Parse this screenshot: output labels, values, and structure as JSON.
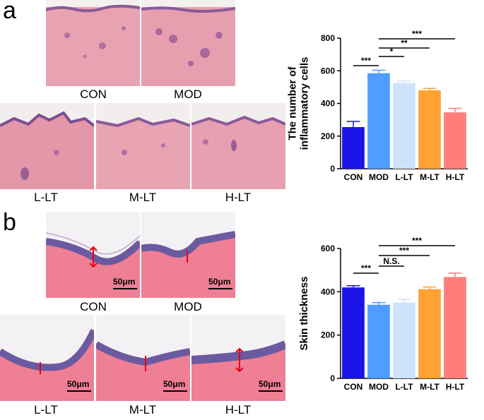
{
  "panels": {
    "a": {
      "letter": "a",
      "tissue_labels": [
        "CON",
        "MOD",
        "L-LT",
        "M-LT",
        "H-LT"
      ]
    },
    "b": {
      "letter": "b",
      "tissue_labels": [
        "CON",
        "MOD",
        "L-LT",
        "M-LT",
        "H-LT"
      ],
      "scale_bar": "50μm"
    }
  },
  "colors": {
    "CON": "#1a14e6",
    "MOD": "#4f9dff",
    "L-LT": "#cde3fb",
    "M-LT": "#ffa232",
    "H-LT": "#ff7e7a",
    "stain_pink": "#e89aa8",
    "stain_purple": "#6b4c8c"
  },
  "chart_data": [
    {
      "type": "bar",
      "categories": [
        "CON",
        "MOD",
        "L-LT",
        "M-LT",
        "H-LT"
      ],
      "values": [
        255,
        585,
        525,
        480,
        345
      ],
      "errors": [
        35,
        18,
        12,
        12,
        25
      ],
      "ylabel": "The number of inflammatory cells",
      "ylabel_lines": [
        "The number of",
        "inflammatory cells"
      ],
      "ylim": [
        0,
        800
      ],
      "yticks": [
        "0",
        "200",
        "400",
        "600",
        "800"
      ],
      "significance": [
        {
          "from": "CON",
          "to": "MOD",
          "label": "***"
        },
        {
          "from": "MOD",
          "to": "L-LT",
          "label": "*"
        },
        {
          "from": "MOD",
          "to": "M-LT",
          "label": "**"
        },
        {
          "from": "MOD",
          "to": "H-LT",
          "label": "***"
        }
      ]
    },
    {
      "type": "bar",
      "categories": [
        "CON",
        "MOD",
        "L-LT",
        "M-LT",
        "H-LT"
      ],
      "values": [
        420,
        340,
        350,
        412,
        468
      ],
      "errors": [
        8,
        10,
        15,
        10,
        18
      ],
      "ylabel": "Skin thickness",
      "ylabel_lines": [
        "Skin thickness"
      ],
      "ylim": [
        0,
        600
      ],
      "yticks": [
        "0",
        "200",
        "400",
        "600"
      ],
      "significance": [
        {
          "from": "CON",
          "to": "MOD",
          "label": "***"
        },
        {
          "from": "MOD",
          "to": "L-LT",
          "label": "N.S."
        },
        {
          "from": "MOD",
          "to": "M-LT",
          "label": "***"
        },
        {
          "from": "MOD",
          "to": "H-LT",
          "label": "***"
        }
      ]
    }
  ]
}
